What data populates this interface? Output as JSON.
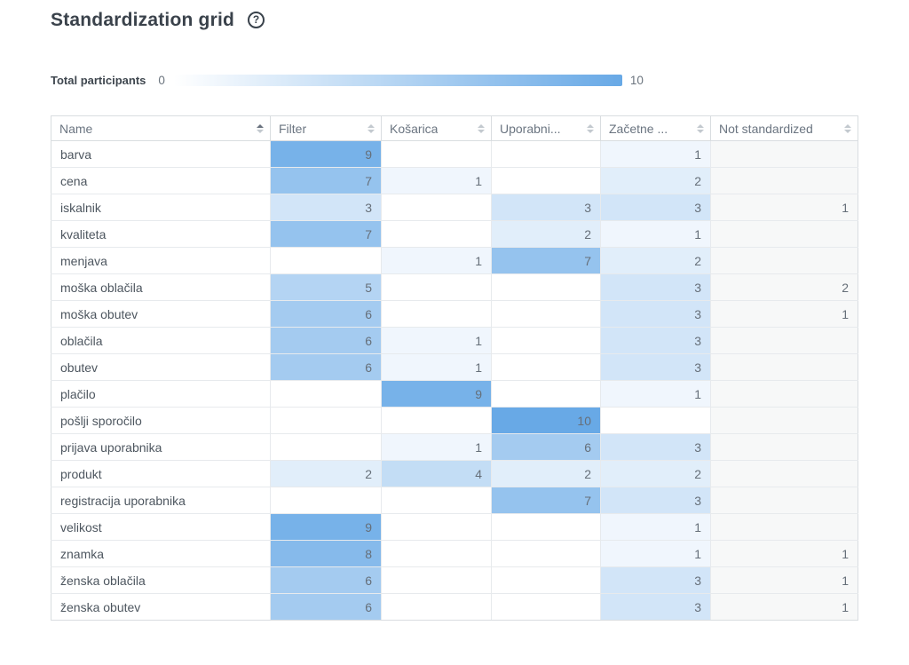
{
  "page": {
    "title": "Standardization grid",
    "help_glyph": "?"
  },
  "legend": {
    "label": "Total participants",
    "min": "0",
    "max": "10",
    "gradient_start": "#ffffff",
    "gradient_end": "#68a9e6"
  },
  "table": {
    "max_value": 10,
    "heat_color_max": "#68a9e6",
    "not_standardized_bg": "#f7f8f8",
    "columns": [
      {
        "label": "Name",
        "sort": "asc"
      },
      {
        "label": "Filter",
        "sort": "none"
      },
      {
        "label": "Košarica",
        "sort": "none"
      },
      {
        "label": "Uporabni...",
        "sort": "none"
      },
      {
        "label": "Začetne ...",
        "sort": "none"
      },
      {
        "label": "Not standardized",
        "sort": "none"
      }
    ],
    "rows": [
      {
        "name": "barva",
        "cells": [
          9,
          null,
          null,
          1,
          null
        ]
      },
      {
        "name": "cena",
        "cells": [
          7,
          1,
          null,
          2,
          null
        ]
      },
      {
        "name": "iskalnik",
        "cells": [
          3,
          null,
          3,
          3,
          1
        ]
      },
      {
        "name": "kvaliteta",
        "cells": [
          7,
          null,
          2,
          1,
          null
        ]
      },
      {
        "name": "menjava",
        "cells": [
          null,
          1,
          7,
          2,
          null
        ]
      },
      {
        "name": "moška oblačila",
        "cells": [
          5,
          null,
          null,
          3,
          2
        ]
      },
      {
        "name": "moška obutev",
        "cells": [
          6,
          null,
          null,
          3,
          1
        ]
      },
      {
        "name": "oblačila",
        "cells": [
          6,
          1,
          null,
          3,
          null
        ]
      },
      {
        "name": "obutev",
        "cells": [
          6,
          1,
          null,
          3,
          null
        ]
      },
      {
        "name": "plačilo",
        "cells": [
          null,
          9,
          null,
          1,
          null
        ]
      },
      {
        "name": "pošlji sporočilo",
        "cells": [
          null,
          null,
          10,
          null,
          null
        ]
      },
      {
        "name": "prijava uporabnika",
        "cells": [
          null,
          1,
          6,
          3,
          null
        ]
      },
      {
        "name": "produkt",
        "cells": [
          2,
          4,
          2,
          2,
          null
        ]
      },
      {
        "name": "registracija uporabnika",
        "cells": [
          null,
          null,
          7,
          3,
          null
        ]
      },
      {
        "name": "velikost",
        "cells": [
          9,
          null,
          null,
          1,
          null
        ]
      },
      {
        "name": "znamka",
        "cells": [
          8,
          null,
          null,
          1,
          1
        ]
      },
      {
        "name": "ženska oblačila",
        "cells": [
          6,
          null,
          null,
          3,
          1
        ]
      },
      {
        "name": "ženska obutev",
        "cells": [
          6,
          null,
          null,
          3,
          1
        ]
      }
    ]
  }
}
